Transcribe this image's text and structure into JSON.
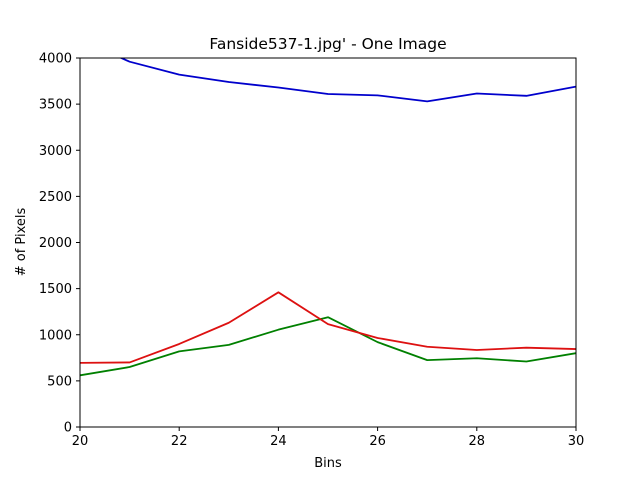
{
  "chart_data": {
    "type": "line",
    "title": "Fanside537-1.jpg' - One Image",
    "xlabel": "Bins",
    "ylabel": "# of Pixels",
    "xlim": [
      20,
      30
    ],
    "ylim": [
      0,
      4000
    ],
    "xticks": [
      20,
      22,
      24,
      26,
      28,
      30
    ],
    "yticks": [
      0,
      500,
      1000,
      1500,
      2000,
      2500,
      3000,
      3500,
      4000
    ],
    "grid": false,
    "x": [
      20,
      21,
      22,
      23,
      24,
      25,
      26,
      27,
      28,
      29,
      30
    ],
    "series": [
      {
        "color": "#0000cc",
        "values": [
          4200,
          3960,
          3820,
          3740,
          3680,
          3610,
          3595,
          3530,
          3615,
          3590,
          3690
        ]
      },
      {
        "color": "#008000",
        "values": [
          560,
          650,
          820,
          890,
          1055,
          1190,
          920,
          725,
          745,
          710,
          800
        ]
      },
      {
        "color": "#dd1111",
        "values": [
          695,
          700,
          900,
          1130,
          1460,
          1115,
          965,
          870,
          835,
          860,
          845
        ]
      }
    ]
  }
}
